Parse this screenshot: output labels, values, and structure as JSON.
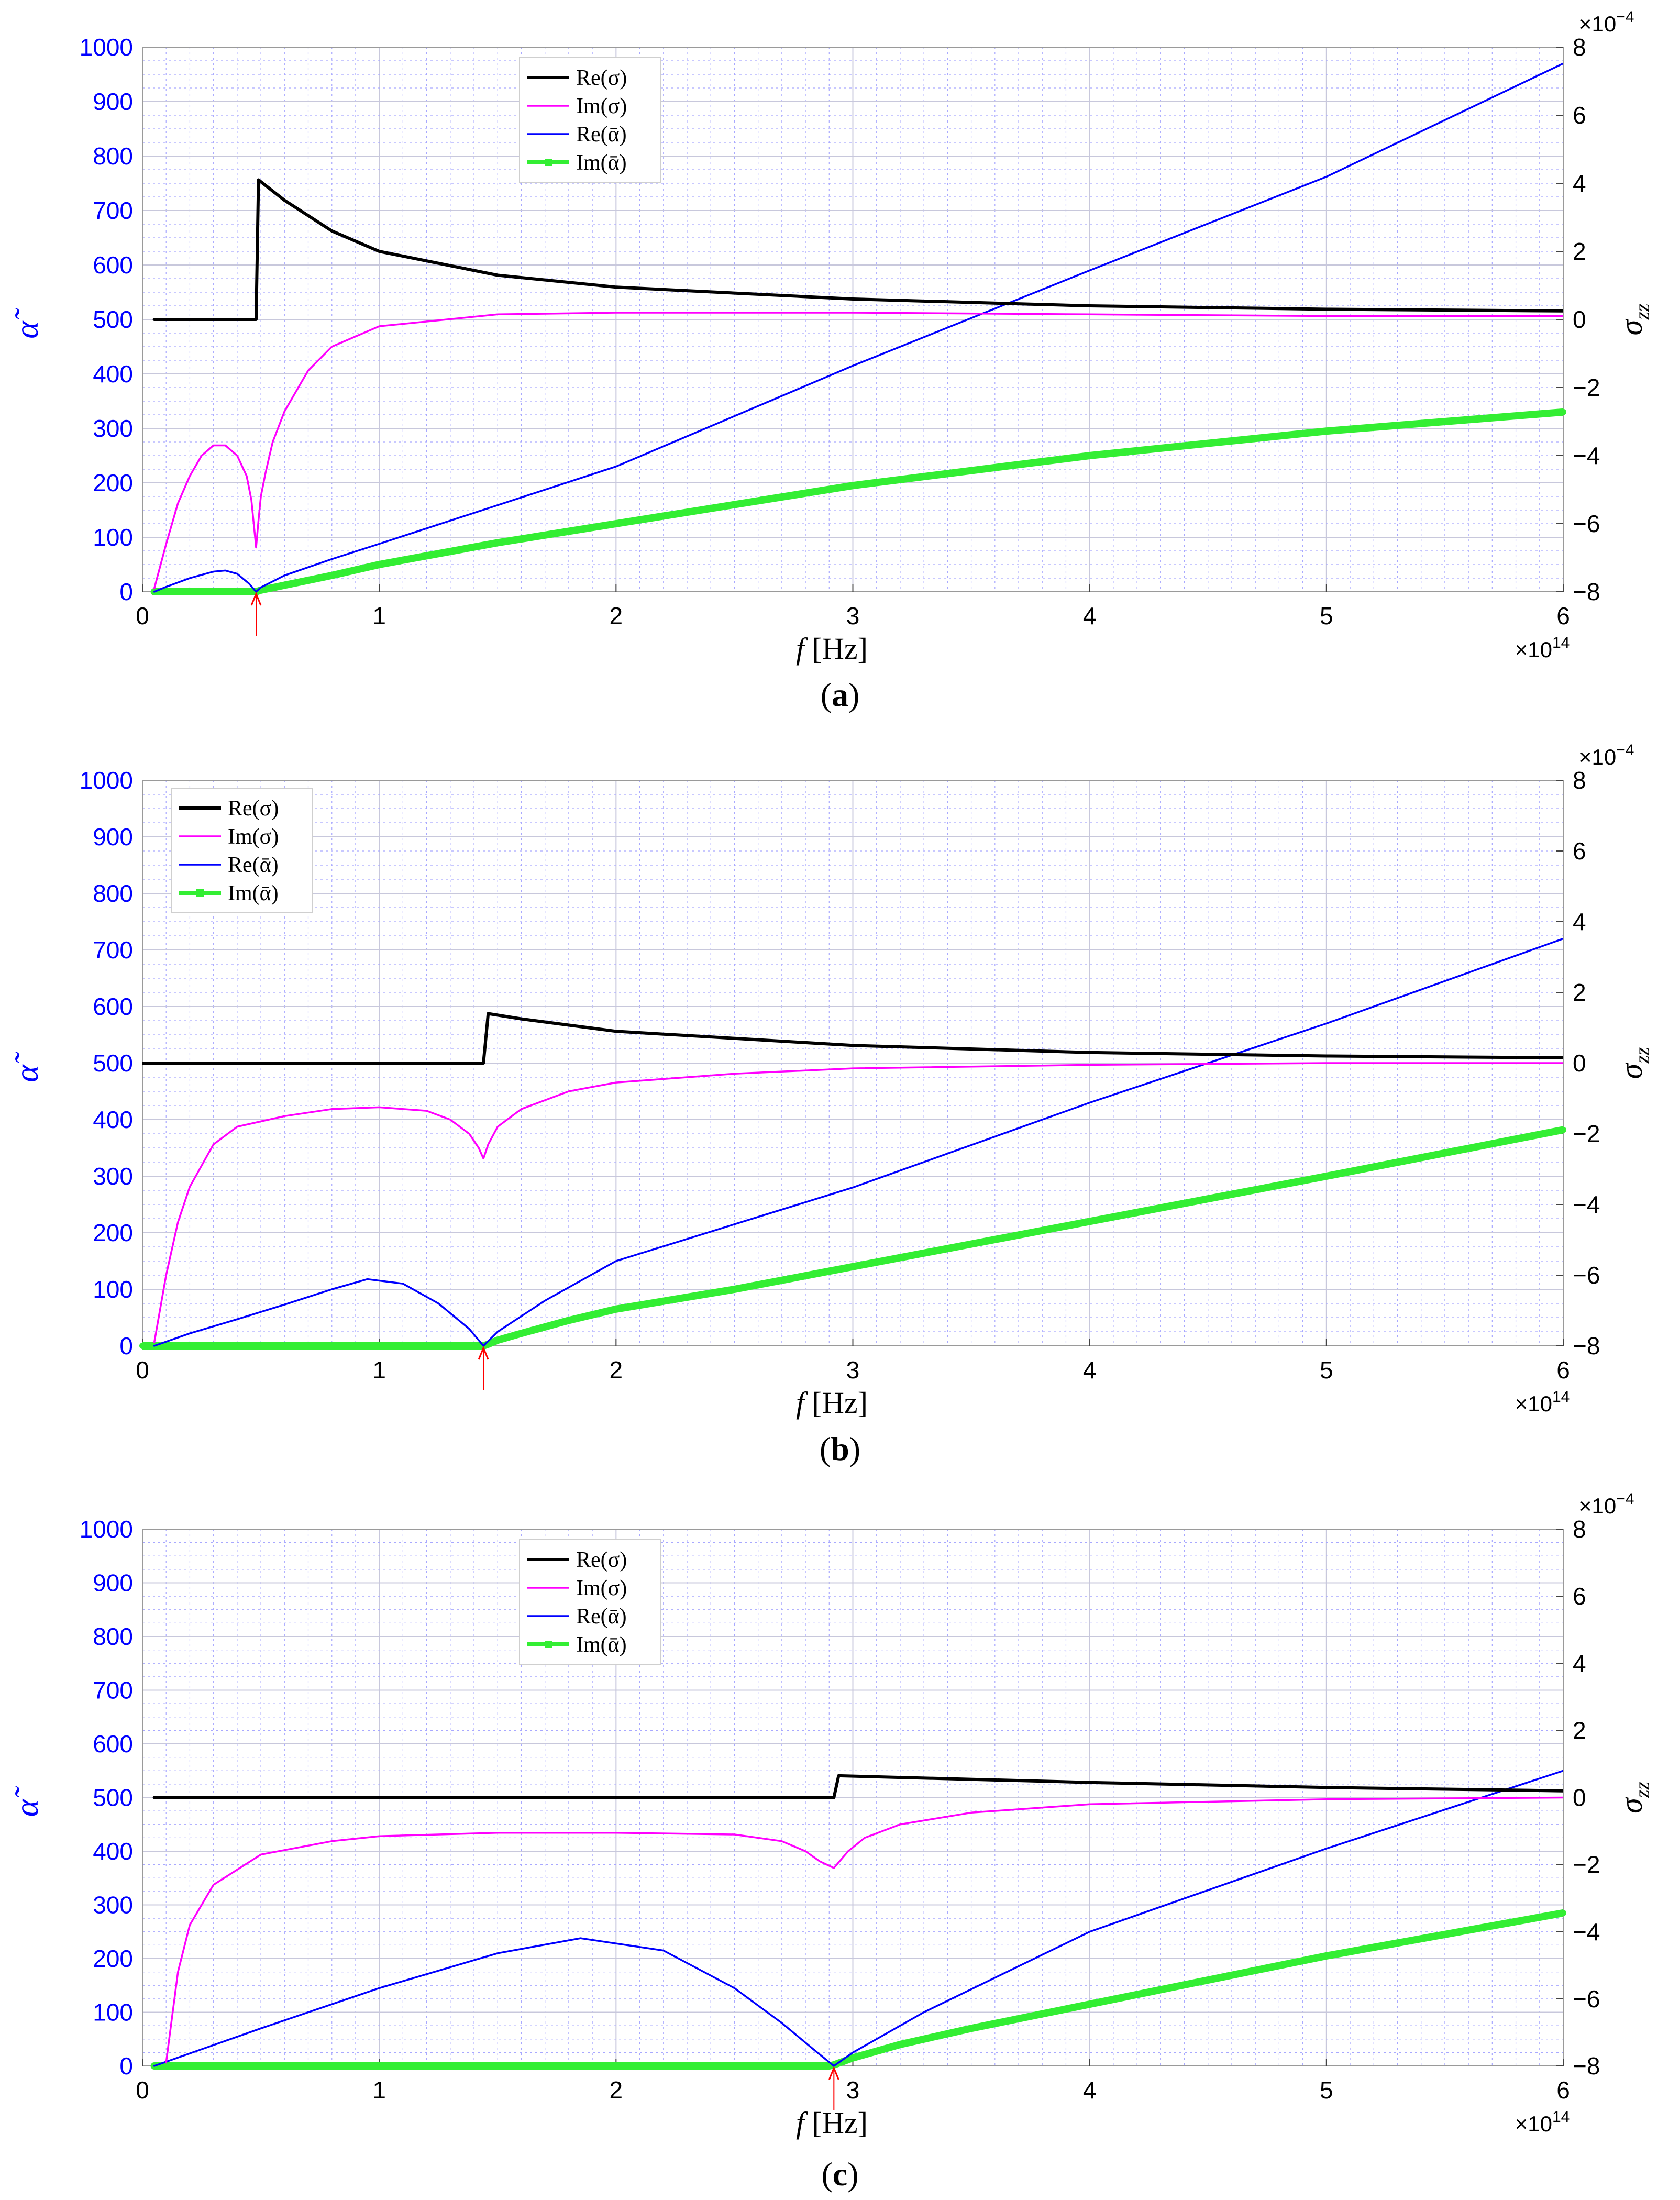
{
  "colors": {
    "re_sigma": "#000000",
    "im_sigma": "#ff00ff",
    "re_alpha": "#0000ff",
    "im_alpha": "#33ee33",
    "left_axis": "#0000ff",
    "right_axis": "#000000",
    "grid_major": "#c8c8dc",
    "grid_minor": "#a8a8ff",
    "marker_arrow": "#ff0000"
  },
  "chart_data": [
    {
      "type": "line",
      "panel_label": "a",
      "caption_open": "(",
      "caption_close": ")",
      "xlabel_italic": "f",
      "xlabel_unit": "[Hz]",
      "x_multiplier": "×10",
      "x_exponent": "14",
      "ylabel_left": "α̃",
      "ylabel_right": "σzz",
      "y_right_multiplier": "×10",
      "y_right_exponent": "−4",
      "xlim": [
        0,
        6
      ],
      "ylim_left": [
        0,
        1000
      ],
      "ylim_right": [
        -8,
        8
      ],
      "x_ticks": [
        "0",
        "1",
        "2",
        "3",
        "4",
        "5",
        "6"
      ],
      "y_left_ticks": [
        "0",
        "100",
        "200",
        "300",
        "400",
        "500",
        "600",
        "700",
        "800",
        "900",
        "1000"
      ],
      "y_right_ticks": [
        "-8",
        "-6",
        "-4",
        "-2",
        "0",
        "2",
        "4",
        "6",
        "8"
      ],
      "legend": [
        "Re(σ)",
        "Im(σ)",
        "Re(ᾱ)",
        "Im(ᾱ)"
      ],
      "legend_position": "top-left",
      "threshold_x": 0.48,
      "series": [
        {
          "name": "Re(σ)",
          "axis": "right",
          "x": [
            0.05,
            0.47,
            0.48,
            0.49,
            0.6,
            0.8,
            1.0,
            1.5,
            2,
            3,
            4,
            5,
            6
          ],
          "y": [
            0,
            0,
            0,
            4.1,
            3.5,
            2.6,
            2.0,
            1.3,
            0.95,
            0.6,
            0.4,
            0.3,
            0.25
          ]
        },
        {
          "name": "Im(σ)",
          "axis": "right",
          "x": [
            0.05,
            0.1,
            0.15,
            0.2,
            0.25,
            0.3,
            0.35,
            0.4,
            0.44,
            0.46,
            0.47,
            0.48,
            0.49,
            0.5,
            0.52,
            0.55,
            0.6,
            0.7,
            0.8,
            1.0,
            1.5,
            2,
            3,
            4,
            5,
            6
          ],
          "y": [
            -7.9,
            -6.6,
            -5.4,
            -4.6,
            -4.0,
            -3.7,
            -3.7,
            -4.0,
            -4.6,
            -5.3,
            -6.0,
            -6.7,
            -5.9,
            -5.2,
            -4.5,
            -3.6,
            -2.7,
            -1.5,
            -0.8,
            -0.2,
            0.15,
            0.2,
            0.2,
            0.15,
            0.1,
            0.1
          ]
        },
        {
          "name": "Re(ᾱ)",
          "axis": "left",
          "x": [
            0.05,
            0.1,
            0.2,
            0.3,
            0.35,
            0.4,
            0.45,
            0.48,
            0.5,
            0.6,
            0.8,
            1,
            2,
            3,
            4,
            5,
            6
          ],
          "y": [
            0,
            9,
            25,
            37,
            39,
            33,
            15,
            0,
            8,
            30,
            60,
            88,
            230,
            415,
            590,
            762,
            970
          ]
        },
        {
          "name": "Im(ᾱ)",
          "axis": "left",
          "x": [
            0.05,
            0.48,
            0.5,
            0.6,
            0.8,
            1,
            1.5,
            2,
            3,
            4,
            5,
            6
          ],
          "y": [
            0,
            0,
            3,
            12,
            30,
            50,
            90,
            125,
            195,
            250,
            295,
            330
          ]
        }
      ]
    },
    {
      "type": "line",
      "panel_label": "b",
      "caption_open": "(",
      "caption_close": ")",
      "xlabel_italic": "f",
      "xlabel_unit": "[Hz]",
      "x_multiplier": "×10",
      "x_exponent": "14",
      "ylabel_left": "α̃",
      "ylabel_right": "σzz",
      "y_right_multiplier": "×10",
      "y_right_exponent": "−4",
      "xlim": [
        0,
        6
      ],
      "ylim_left": [
        0,
        1000
      ],
      "ylim_right": [
        -8,
        8
      ],
      "x_ticks": [
        "0",
        "1",
        "2",
        "3",
        "4",
        "5",
        "6"
      ],
      "y_left_ticks": [
        "0",
        "100",
        "200",
        "300",
        "400",
        "500",
        "600",
        "700",
        "800",
        "900",
        "1000"
      ],
      "y_right_ticks": [
        "-8",
        "-6",
        "-4",
        "-2",
        "0",
        "2",
        "4",
        "6",
        "8"
      ],
      "legend": [
        "Re(σ)",
        "Im(σ)",
        "Re(ᾱ)",
        "Im(ᾱ)"
      ],
      "legend_position": "top-left",
      "threshold_x": 1.44,
      "series": [
        {
          "name": "Re(σ)",
          "axis": "right",
          "x": [
            0,
            1.42,
            1.44,
            1.46,
            1.6,
            2,
            2.5,
            3,
            4,
            5,
            6
          ],
          "y": [
            0,
            0,
            0,
            1.4,
            1.25,
            0.9,
            0.7,
            0.5,
            0.3,
            0.2,
            0.15
          ]
        },
        {
          "name": "Im(σ)",
          "axis": "right",
          "x": [
            0.05,
            0.1,
            0.15,
            0.2,
            0.3,
            0.4,
            0.6,
            0.8,
            1.0,
            1.2,
            1.3,
            1.38,
            1.42,
            1.44,
            1.46,
            1.5,
            1.6,
            1.8,
            2,
            2.5,
            3,
            4,
            5,
            6
          ],
          "y": [
            -7.9,
            -6.0,
            -4.5,
            -3.5,
            -2.3,
            -1.8,
            -1.5,
            -1.3,
            -1.25,
            -1.35,
            -1.6,
            -2.0,
            -2.4,
            -2.7,
            -2.3,
            -1.8,
            -1.3,
            -0.8,
            -0.55,
            -0.3,
            -0.15,
            -0.05,
            0,
            0
          ]
        },
        {
          "name": "Re(ᾱ)",
          "axis": "left",
          "x": [
            0.05,
            0.2,
            0.4,
            0.6,
            0.8,
            0.95,
            1.1,
            1.25,
            1.38,
            1.44,
            1.5,
            1.7,
            2,
            3,
            4,
            5,
            6
          ],
          "y": [
            0,
            22,
            47,
            73,
            100,
            118,
            110,
            75,
            30,
            0,
            25,
            80,
            150,
            280,
            430,
            570,
            720
          ]
        },
        {
          "name": "Im(ᾱ)",
          "axis": "left",
          "x": [
            0,
            1.44,
            1.46,
            1.5,
            1.6,
            1.8,
            2,
            2.5,
            3,
            4,
            5,
            6
          ],
          "y": [
            0,
            0,
            3,
            10,
            22,
            45,
            65,
            100,
            140,
            220,
            300,
            382
          ]
        }
      ]
    },
    {
      "type": "line",
      "panel_label": "c",
      "caption_open": "(",
      "caption_close": ")",
      "xlabel_italic": "f",
      "xlabel_unit": "[Hz]",
      "x_multiplier": "×10",
      "x_exponent": "14",
      "ylabel_left": "α̃",
      "ylabel_right": "σzz",
      "y_right_multiplier": "×10",
      "y_right_exponent": "−4",
      "xlim": [
        0,
        6
      ],
      "ylim_left": [
        0,
        1000
      ],
      "ylim_right": [
        -8,
        8
      ],
      "x_ticks": [
        "0",
        "1",
        "2",
        "3",
        "4",
        "5",
        "6"
      ],
      "y_left_ticks": [
        "0",
        "100",
        "200",
        "300",
        "400",
        "500",
        "600",
        "700",
        "800",
        "900",
        "1000"
      ],
      "y_right_ticks": [
        "-8",
        "-6",
        "-4",
        "-2",
        "0",
        "2",
        "4",
        "6",
        "8"
      ],
      "legend": [
        "Re(σ)",
        "Im(σ)",
        "Re(ᾱ)",
        "Im(ᾱ)"
      ],
      "legend_position": "top-left",
      "threshold_x": 2.92,
      "series": [
        {
          "name": "Re(σ)",
          "axis": "right",
          "x": [
            0.05,
            2.9,
            2.92,
            2.94,
            3.2,
            4,
            5,
            6
          ],
          "y": [
            0,
            0,
            0,
            0.65,
            0.6,
            0.45,
            0.3,
            0.2
          ]
        },
        {
          "name": "Im(σ)",
          "axis": "right",
          "x": [
            0.1,
            0.15,
            0.2,
            0.3,
            0.5,
            0.8,
            1.0,
            1.5,
            2.0,
            2.5,
            2.7,
            2.8,
            2.86,
            2.92,
            2.98,
            3.05,
            3.2,
            3.5,
            4,
            5,
            6
          ],
          "y": [
            -7.9,
            -5.2,
            -3.8,
            -2.6,
            -1.7,
            -1.3,
            -1.15,
            -1.05,
            -1.05,
            -1.1,
            -1.3,
            -1.6,
            -1.9,
            -2.1,
            -1.6,
            -1.2,
            -0.8,
            -0.45,
            -0.2,
            -0.05,
            0
          ]
        },
        {
          "name": "Re(ᾱ)",
          "axis": "left",
          "x": [
            0.05,
            0.5,
            1,
            1.5,
            1.85,
            2.2,
            2.5,
            2.7,
            2.85,
            2.92,
            3,
            3.3,
            4,
            5,
            6
          ],
          "y": [
            0,
            70,
            145,
            210,
            238,
            215,
            145,
            80,
            25,
            0,
            25,
            100,
            250,
            405,
            550
          ]
        },
        {
          "name": "Im(ᾱ)",
          "axis": "left",
          "x": [
            0.05,
            2.9,
            2.92,
            3,
            3.2,
            3.5,
            4,
            5,
            6
          ],
          "y": [
            0,
            0,
            2,
            15,
            40,
            70,
            115,
            205,
            285
          ]
        }
      ]
    }
  ]
}
